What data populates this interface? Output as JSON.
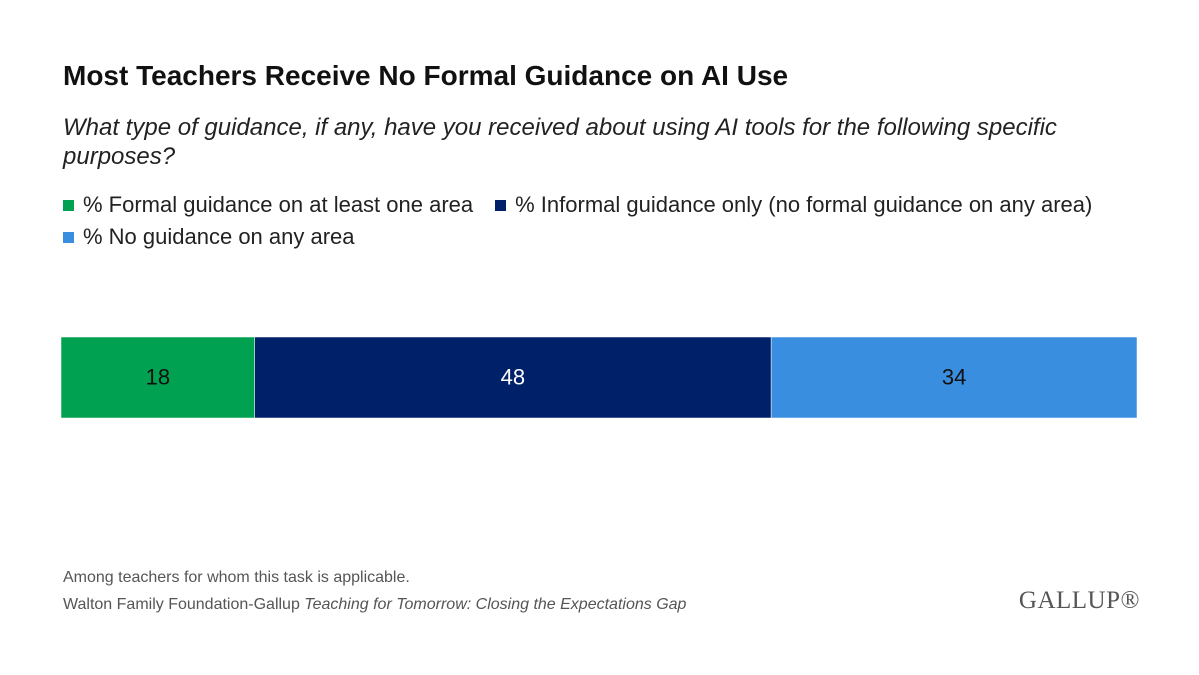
{
  "chart_data": {
    "type": "stacked_bar",
    "title": "Most Teachers Receive No Formal Guidance on AI Use",
    "subtitle": "What type of guidance, if any, have you received about using AI tools for the following specific purposes?",
    "categories": [
      null
    ],
    "series": [
      {
        "name": "% Formal guidance on at least one area",
        "color": "#00a151",
        "values": [
          18
        ]
      },
      {
        "name": "% Informal guidance only (no formal guidance on any area)",
        "color": "#002169",
        "values": [
          48
        ]
      },
      {
        "name": "% No guidance on any area",
        "color": "#3a8ee0",
        "values": [
          34
        ]
      }
    ],
    "note": "Among teachers for whom this task is applicable.",
    "source": "Walton Family Foundation-Gallup",
    "source_title": "Teaching for Tomorrow: Closing the Expectations Gap",
    "logo": "GALLUP®"
  }
}
